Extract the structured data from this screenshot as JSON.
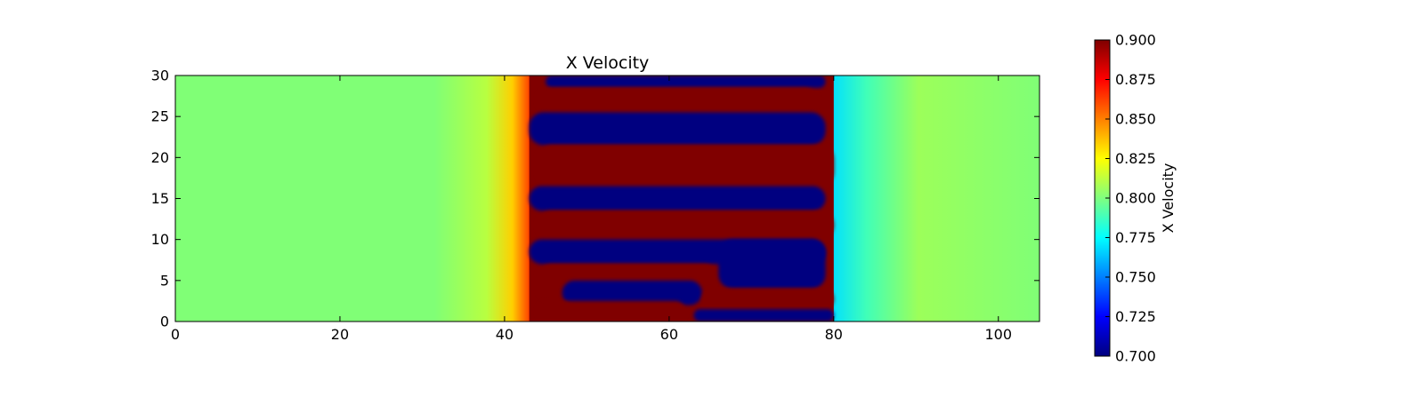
{
  "chart_data": {
    "type": "heatmap",
    "title": "X Velocity",
    "xlabel": "",
    "ylabel": "",
    "xlim": [
      0,
      105
    ],
    "ylim": [
      0,
      30
    ],
    "x_ticks": [
      0,
      20,
      40,
      60,
      80,
      100
    ],
    "y_ticks": [
      0,
      5,
      10,
      15,
      20,
      25,
      30
    ],
    "colormap": "jet",
    "colorbar": {
      "label": "X Velocity",
      "vmin": 0.7,
      "vmax": 0.9,
      "ticks": [
        "0.700",
        "0.725",
        "0.750",
        "0.775",
        "0.800",
        "0.825",
        "0.850",
        "0.875",
        "0.900"
      ]
    },
    "background_value": 0.795,
    "band_region_x": [
      43,
      80
    ],
    "regions": [
      {
        "value": 0.7,
        "x": [
          45,
          79
        ],
        "y": [
          28.5,
          30
        ]
      },
      {
        "value": 0.9,
        "x": [
          44,
          78
        ],
        "y": [
          25.5,
          28.5
        ]
      },
      {
        "value": 0.7,
        "x": [
          43,
          79
        ],
        "y": [
          21.5,
          25.5
        ]
      },
      {
        "value": 0.9,
        "x": [
          44,
          80
        ],
        "y": [
          16.5,
          21.5
        ]
      },
      {
        "value": 0.7,
        "x": [
          43,
          79
        ],
        "y": [
          13.5,
          16.5
        ]
      },
      {
        "value": 0.9,
        "x": [
          44,
          80
        ],
        "y": [
          10,
          13.5
        ]
      },
      {
        "value": 0.7,
        "x": [
          43,
          79
        ],
        "y": [
          7,
          10
        ]
      },
      {
        "value": 0.9,
        "x": [
          44,
          66
        ],
        "y": [
          2.5,
          7
        ]
      },
      {
        "value": 0.7,
        "x": [
          66,
          79
        ],
        "y": [
          4,
          10
        ]
      },
      {
        "value": 0.7,
        "x": [
          47,
          64
        ],
        "y": [
          2,
          5
        ]
      },
      {
        "value": 0.9,
        "x": [
          64,
          80
        ],
        "y": [
          1.5,
          4
        ]
      },
      {
        "value": 0.9,
        "x": [
          44,
          62
        ],
        "y": [
          0,
          2.5
        ]
      },
      {
        "value": 0.7,
        "x": [
          63,
          80
        ],
        "y": [
          0,
          1.5
        ]
      }
    ]
  }
}
